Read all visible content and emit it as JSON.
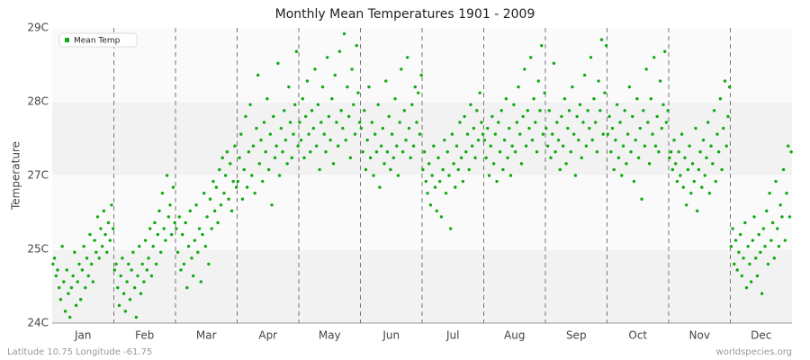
{
  "chart_data": {
    "type": "scatter",
    "title": "Monthly Mean Temperatures 1901 - 2009",
    "ylabel": "Temperature",
    "footer_left": "Latitude 10.75 Longitude -61.75",
    "footer_right": "worldspecies.org",
    "legend": "top-left",
    "categories": [
      "Jan",
      "Feb",
      "Mar",
      "Apr",
      "May",
      "Jun",
      "Jul",
      "Aug",
      "Sep",
      "Oct",
      "Nov",
      "Dec"
    ],
    "ylim": [
      24,
      29
    ],
    "yticks": [
      {
        "value": 24,
        "label": "24C"
      },
      {
        "value": 25.25,
        "label": "25C"
      },
      {
        "value": 26.5,
        "label": "27C"
      },
      {
        "value": 27.75,
        "label": "28C"
      },
      {
        "value": 29,
        "label": "29C"
      }
    ],
    "series": [
      {
        "name": "Mean Temp",
        "color": "#11aa11",
        "values": [
          [
            25.0,
            25.1,
            24.8,
            24.9,
            24.6,
            24.4,
            25.3,
            24.7,
            24.2,
            24.9,
            24.5,
            24.1,
            24.6,
            24.8,
            25.2,
            24.3,
            24.7,
            25.0,
            24.4,
            24.9,
            25.3,
            24.6,
            25.1,
            24.8,
            25.5,
            25.0,
            24.7,
            25.4,
            25.2,
            25.8,
            25.1,
            25.6,
            25.3,
            25.9,
            25.5,
            25.2,
            25.7,
            25.4,
            26.0,
            25.6
          ],
          [
            24.9,
            25.0,
            24.6,
            24.3,
            24.8,
            25.1,
            24.5,
            24.2,
            24.7,
            25.0,
            24.4,
            24.9,
            25.2,
            24.6,
            24.1,
            24.8,
            25.3,
            24.5,
            25.0,
            24.7,
            25.4,
            24.9,
            25.1,
            25.6,
            24.8,
            25.3,
            25.7,
            25.0,
            25.5,
            25.9,
            25.2,
            26.2,
            25.6,
            25.4,
            26.5,
            25.8,
            26.0,
            25.5,
            26.3,
            25.7
          ],
          [
            25.6,
            25.2,
            25.8,
            24.9,
            25.5,
            25.0,
            25.7,
            24.6,
            25.3,
            25.9,
            25.1,
            24.8,
            25.4,
            26.0,
            25.2,
            25.6,
            24.7,
            25.5,
            26.2,
            25.3,
            25.8,
            25.0,
            26.1,
            25.6,
            26.4,
            25.9,
            26.3,
            25.7,
            26.6,
            26.0,
            26.8,
            26.2,
            26.5,
            26.9,
            26.1,
            26.7,
            25.9,
            26.4,
            27.0,
            26.3
          ],
          [
            26.4,
            26.8,
            27.2,
            26.1,
            26.6,
            27.5,
            26.3,
            26.9,
            27.7,
            26.5,
            27.0,
            26.2,
            27.3,
            28.2,
            26.7,
            27.1,
            26.4,
            27.4,
            26.9,
            27.8,
            26.6,
            27.2,
            26.0,
            27.5,
            26.8,
            27.0,
            28.4,
            26.5,
            27.3,
            26.9,
            27.6,
            27.1,
            26.7,
            28.0,
            27.4,
            26.8,
            27.2,
            27.7,
            28.6,
            27.0
          ],
          [
            27.4,
            27.1,
            27.8,
            26.8,
            27.5,
            28.1,
            27.2,
            26.9,
            27.6,
            27.3,
            28.3,
            27.0,
            27.7,
            26.6,
            27.4,
            28.0,
            27.2,
            26.9,
            28.5,
            27.5,
            27.1,
            27.8,
            26.7,
            28.2,
            27.4,
            27.0,
            28.6,
            27.6,
            27.3,
            28.9,
            27.1,
            28.0,
            27.5,
            26.8,
            28.3,
            27.7,
            27.2,
            28.7,
            27.9,
            27.4
          ],
          [
            27.3,
            26.9,
            27.6,
            26.6,
            27.1,
            28.0,
            26.8,
            27.4,
            26.5,
            27.2,
            26.9,
            27.7,
            26.3,
            27.0,
            27.3,
            26.7,
            28.1,
            26.9,
            27.5,
            26.6,
            27.2,
            26.8,
            27.8,
            27.0,
            26.5,
            27.4,
            28.3,
            26.9,
            27.6,
            27.1,
            28.5,
            27.3,
            26.8,
            27.7,
            27.0,
            28.0,
            27.4,
            27.9,
            27.2,
            28.2
          ],
          [
            26.6,
            26.9,
            26.4,
            26.2,
            26.7,
            26.0,
            26.5,
            27.0,
            26.3,
            25.9,
            26.8,
            26.4,
            25.8,
            26.6,
            27.1,
            26.2,
            26.9,
            26.5,
            25.6,
            27.2,
            26.7,
            26.3,
            27.0,
            26.6,
            27.4,
            26.8,
            26.4,
            27.5,
            26.9,
            27.2,
            26.6,
            27.7,
            27.0,
            27.3,
            26.8,
            27.6,
            27.1,
            27.9,
            27.4,
            27.2
          ],
          [
            27.1,
            26.8,
            27.3,
            26.5,
            27.0,
            27.5,
            26.7,
            27.2,
            26.4,
            27.4,
            26.9,
            27.6,
            26.6,
            27.1,
            27.8,
            26.8,
            27.3,
            26.5,
            27.0,
            27.7,
            26.9,
            27.4,
            28.0,
            27.2,
            26.7,
            27.5,
            28.3,
            27.0,
            27.6,
            27.3,
            28.5,
            27.1,
            27.8,
            27.4,
            26.9,
            28.1,
            27.6,
            28.7,
            27.2,
            27.9
          ],
          [
            27.3,
            27.0,
            27.6,
            26.8,
            27.2,
            28.4,
            26.9,
            27.4,
            27.1,
            26.6,
            27.5,
            27.0,
            27.8,
            26.7,
            27.3,
            27.6,
            26.9,
            28.0,
            27.2,
            26.5,
            27.5,
            27.1,
            27.7,
            26.8,
            27.4,
            28.2,
            27.0,
            27.6,
            27.3,
            28.5,
            27.1,
            27.8,
            27.4,
            26.9,
            28.1,
            27.6,
            28.8,
            27.2,
            27.9,
            28.7
          ],
          [
            27.2,
            27.5,
            26.9,
            27.3,
            26.6,
            27.1,
            27.7,
            26.8,
            27.4,
            26.5,
            27.0,
            27.6,
            26.7,
            27.2,
            28.0,
            26.9,
            27.5,
            26.4,
            27.1,
            27.8,
            26.8,
            27.3,
            26.1,
            27.6,
            27.0,
            28.3,
            27.4,
            26.7,
            27.8,
            27.2,
            28.5,
            27.0,
            27.5,
            26.9,
            28.1,
            27.3,
            27.7,
            28.6,
            27.4,
            27.6
          ],
          [
            26.8,
            26.9,
            26.6,
            27.1,
            26.7,
            26.4,
            26.9,
            26.5,
            27.2,
            26.3,
            26.8,
            26.0,
            26.6,
            27.0,
            26.2,
            26.7,
            26.4,
            27.3,
            25.9,
            26.6,
            26.9,
            26.3,
            27.1,
            26.5,
            26.8,
            27.4,
            26.2,
            27.0,
            26.7,
            27.6,
            26.4,
            27.2,
            26.9,
            27.8,
            26.6,
            27.3,
            28.1,
            27.0,
            27.5,
            28.0
          ],
          [
            25.3,
            25.6,
            25.0,
            25.4,
            24.9,
            25.2,
            25.5,
            24.8,
            25.1,
            25.7,
            24.6,
            25.3,
            25.0,
            24.7,
            25.4,
            25.8,
            25.1,
            24.8,
            25.5,
            25.2,
            24.5,
            25.6,
            25.3,
            25.9,
            25.0,
            26.2,
            25.4,
            25.7,
            25.1,
            26.4,
            25.6,
            25.3,
            26.0,
            25.8,
            26.6,
            25.4,
            26.2,
            27.0,
            25.8,
            26.9
          ]
        ]
      }
    ]
  }
}
